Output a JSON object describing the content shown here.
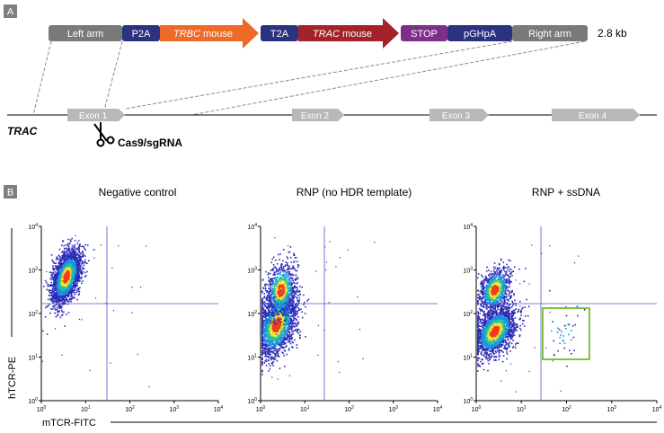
{
  "panel_a": {
    "letter": "A",
    "construct_segments": [
      {
        "id": "left-arm",
        "label": "Left arm",
        "color": "#7a7a7a",
        "italic_part": "",
        "suffix": ""
      },
      {
        "id": "p2a",
        "label": "P2A",
        "color": "#2b3280",
        "italic_part": "",
        "suffix": ""
      },
      {
        "id": "trbc",
        "label": "",
        "color": "#ee6a2a",
        "italic_part": "TRBC",
        "suffix": " mouse"
      },
      {
        "id": "t2a",
        "label": "T2A",
        "color": "#2b3280",
        "italic_part": "",
        "suffix": ""
      },
      {
        "id": "trac-mouse",
        "label": "",
        "color": "#a3232a",
        "italic_part": "TRAC",
        "suffix": " mouse"
      },
      {
        "id": "stop",
        "label": "STOP",
        "color": "#7d2f8a",
        "italic_part": "",
        "suffix": ""
      },
      {
        "id": "pghpa",
        "label": "pGHpA",
        "color": "#2b3280",
        "italic_part": "",
        "suffix": ""
      },
      {
        "id": "right-arm",
        "label": "Right arm",
        "color": "#7a7a7a",
        "italic_part": "",
        "suffix": ""
      }
    ],
    "construct_size": "2.8 kb",
    "gene_label": "TRAC",
    "exons": [
      "Exon 1",
      "Exon 2",
      "Exon 3",
      "Exon 4"
    ],
    "exon_color": "#b8b8b8",
    "cas_label": "Cas9/sgRNA"
  },
  "panel_b": {
    "letter": "B",
    "plots": [
      {
        "title": "Negative control"
      },
      {
        "title": "RNP (no HDR template)"
      },
      {
        "title": "RNP + ssDNA"
      }
    ],
    "x_axis_title": "mTCR-FITC",
    "y_axis_title": "hTCR-PE",
    "tick_base": "10",
    "tick_exponents": [
      "0",
      "1",
      "2",
      "3",
      "4"
    ],
    "gate_color": "#7dc242",
    "quadrant_line_color": "#5555cc",
    "density_colors": [
      "#2b2bb8",
      "#1f8fe0",
      "#22c4a0",
      "#f2e02a",
      "#ef3b1f"
    ]
  }
}
